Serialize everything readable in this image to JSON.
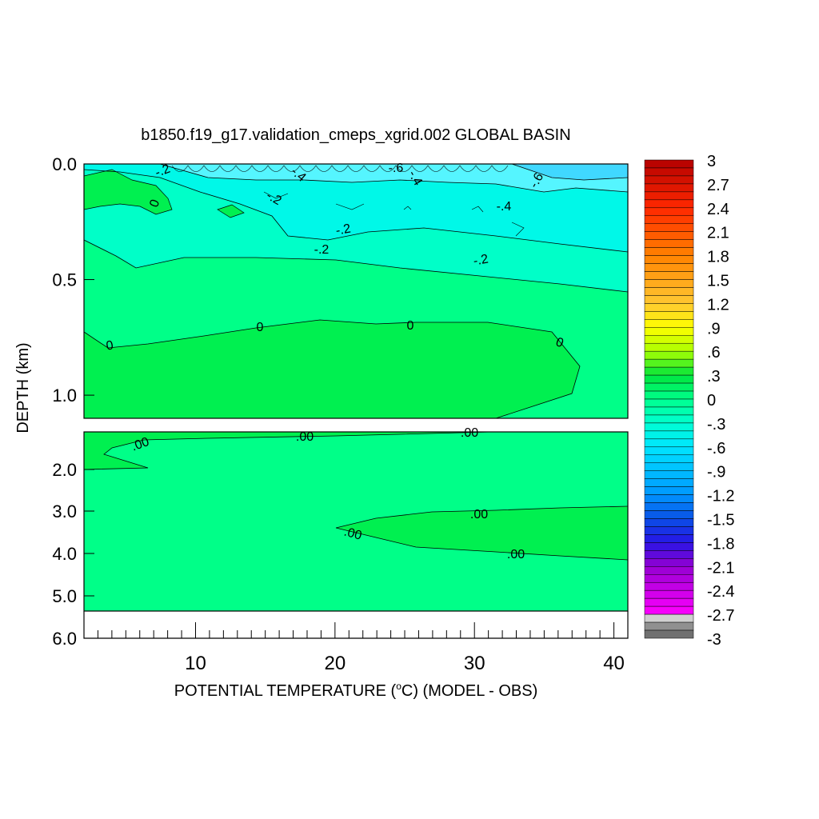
{
  "chart_data": {
    "type": "heatmap",
    "title": "b1850.f19_g17.validation_cmeps_xgrid.002 GLOBAL BASIN",
    "xlabel_prefix": "POTENTIAL TEMPERATURE (",
    "xlabel_degree": "o",
    "xlabel_suffix": "C) (MODEL - OBS)",
    "ylabel": "DEPTH (km)",
    "xlim": [
      2,
      41
    ],
    "x_ticks": [
      "10",
      "20",
      "30",
      "40"
    ],
    "upper_panel": {
      "ylim": [
        0.0,
        1.1
      ],
      "y_ticks": [
        "0.0",
        "0.5",
        "1.0"
      ],
      "contour_labels": [
        "-.2",
        "-.4",
        "-.6",
        "-.4",
        "-.6",
        "-.2",
        "0",
        "-.4",
        "-.2",
        "-.2",
        "-.2",
        "0",
        "0",
        "0",
        "0"
      ]
    },
    "lower_panel": {
      "ylim": [
        1.1,
        6.0
      ],
      "y_ticks": [
        "2.0",
        "3.0",
        "4.0",
        "5.0",
        "6.0"
      ],
      "contour_labels": [
        ".00",
        ".00",
        ".00",
        ".00",
        ".00",
        ".00"
      ]
    },
    "colorbar": {
      "labels": [
        "3",
        "2.7",
        "2.4",
        "2.1",
        "1.8",
        "1.5",
        "1.2",
        ".9",
        ".6",
        ".3",
        "0",
        "-.3",
        "-.6",
        "-.9",
        "-1.2",
        "-1.5",
        "-1.8",
        "-2.1",
        "-2.4",
        "-2.7",
        "-3"
      ],
      "min": -3,
      "max": 3,
      "step": 0.1
    },
    "colors": {
      "positive_small": "#00f050",
      "zero": "#00ff88",
      "negative_small": "#00ffc8",
      "negative_mid": "#00f8e8"
    }
  }
}
